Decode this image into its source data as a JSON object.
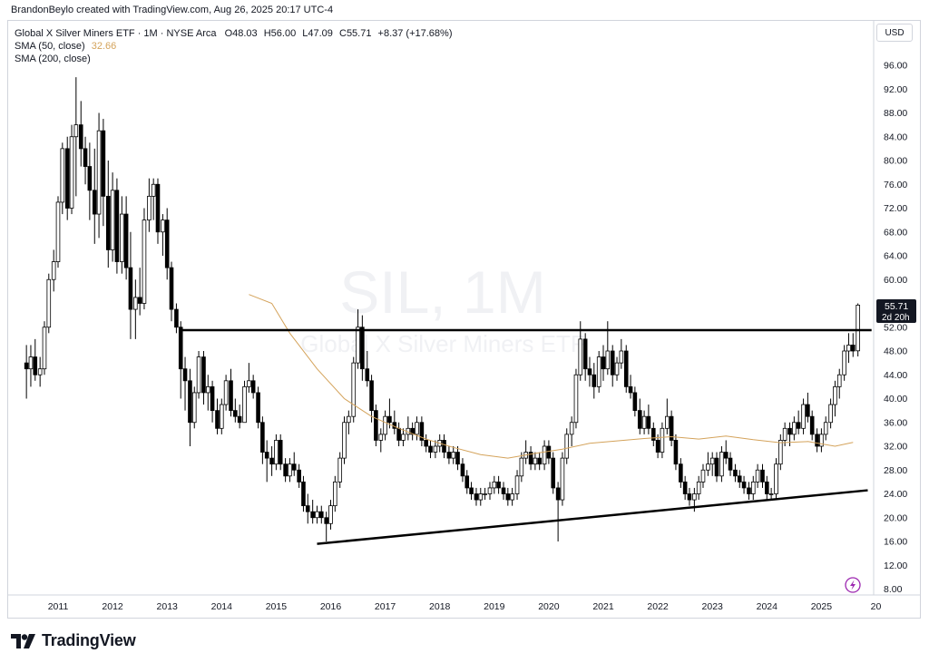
{
  "header": {
    "credit": "BrandonBeylo created with TradingView.com, Aug 26, 2025 20:17 UTC-4"
  },
  "legend": {
    "symbol": "Global X Silver Miners ETF · 1M · NYSE Arca",
    "o_label": "O",
    "o_value": "48.03",
    "h_label": "H",
    "h_value": "56.00",
    "l_label": "L",
    "l_value": "47.09",
    "c_label": "C",
    "c_value": "55.71",
    "change": "+8.37 (+17.68%)",
    "sma50_label": "SMA (50, close)",
    "sma50_value": "32.66",
    "sma200_label": "SMA (200, close)"
  },
  "watermark": {
    "ticker": "SIL, 1M",
    "name": "Global X Silver Miners ETF"
  },
  "currency": "USD",
  "price_label": {
    "price": "55.71",
    "countdown": "2d 20h"
  },
  "brand": {
    "name": "TradingView"
  },
  "chart_data": {
    "type": "candlestick",
    "interval": "1M",
    "x_ticks": [
      "2011",
      "2012",
      "2013",
      "2014",
      "2015",
      "2016",
      "2017",
      "2018",
      "2019",
      "2020",
      "2021",
      "2022",
      "2023",
      "2024",
      "2025",
      "20"
    ],
    "y_ticks": [
      "96.00",
      "92.00",
      "88.00",
      "84.00",
      "80.00",
      "76.00",
      "72.00",
      "68.00",
      "64.00",
      "60.00",
      "52.00",
      "48.00",
      "44.00",
      "40.00",
      "36.00",
      "32.00",
      "28.00",
      "24.00",
      "20.00",
      "16.00",
      "12.00",
      "8.00"
    ],
    "ylim": [
      8,
      100
    ],
    "xlim": [
      2010.22,
      2025.92
    ],
    "colors": {
      "up": "#ffffff",
      "down": "#000000",
      "wick": "#000000",
      "sma50": "#d4a35b"
    },
    "ohlc_series": [
      [
        2010.42,
        46,
        49,
        40,
        45
      ],
      [
        2010.5,
        45,
        49,
        42,
        47
      ],
      [
        2010.58,
        47,
        50,
        43,
        44
      ],
      [
        2010.67,
        44,
        47,
        42,
        45
      ],
      [
        2010.75,
        45,
        53,
        44,
        52
      ],
      [
        2010.83,
        52,
        61,
        51,
        60
      ],
      [
        2010.92,
        60,
        65,
        58,
        63
      ],
      [
        2011.0,
        63,
        74,
        62,
        73
      ],
      [
        2011.08,
        73,
        83,
        71,
        82
      ],
      [
        2011.17,
        82,
        84,
        70,
        72
      ],
      [
        2011.25,
        72,
        86,
        71,
        84
      ],
      [
        2011.33,
        84,
        94,
        74,
        86
      ],
      [
        2011.42,
        86,
        90,
        79,
        82
      ],
      [
        2011.5,
        82,
        84,
        76,
        79
      ],
      [
        2011.58,
        79,
        83,
        70,
        75
      ],
      [
        2011.67,
        75,
        82,
        66,
        71
      ],
      [
        2011.75,
        71,
        88,
        67,
        85
      ],
      [
        2011.83,
        85,
        87,
        69,
        74
      ],
      [
        2011.92,
        74,
        80,
        62,
        65
      ],
      [
        2012.0,
        65,
        78,
        63,
        75
      ],
      [
        2012.08,
        75,
        77,
        61,
        63
      ],
      [
        2012.17,
        63,
        74,
        61,
        71
      ],
      [
        2012.25,
        71,
        74,
        60,
        62
      ],
      [
        2012.33,
        62,
        68,
        50,
        55
      ],
      [
        2012.42,
        55,
        60,
        50,
        57
      ],
      [
        2012.5,
        57,
        62,
        54,
        56
      ],
      [
        2012.58,
        56,
        72,
        55,
        70
      ],
      [
        2012.67,
        70,
        77,
        68,
        74
      ],
      [
        2012.75,
        74,
        77,
        70,
        76
      ],
      [
        2012.83,
        76,
        77,
        66,
        68
      ],
      [
        2012.92,
        68,
        71,
        64,
        70
      ],
      [
        2013.0,
        70,
        72,
        60,
        62
      ],
      [
        2013.08,
        62,
        63,
        53,
        55
      ],
      [
        2013.17,
        55,
        56,
        51,
        52
      ],
      [
        2013.25,
        52,
        53,
        40,
        45
      ],
      [
        2013.33,
        45,
        47,
        38,
        43
      ],
      [
        2013.42,
        43,
        45,
        32,
        36
      ],
      [
        2013.5,
        36,
        42,
        35,
        41
      ],
      [
        2013.58,
        41,
        48,
        40,
        47
      ],
      [
        2013.67,
        47,
        48,
        39,
        41
      ],
      [
        2013.75,
        41,
        44,
        38,
        42
      ],
      [
        2013.83,
        42,
        43,
        36,
        38
      ],
      [
        2013.92,
        38,
        40,
        34,
        35
      ],
      [
        2014.0,
        35,
        40,
        34,
        39
      ],
      [
        2014.08,
        39,
        44,
        38,
        43
      ],
      [
        2014.17,
        43,
        45,
        37,
        38
      ],
      [
        2014.25,
        38,
        40,
        36,
        37
      ],
      [
        2014.33,
        37,
        39,
        35,
        36
      ],
      [
        2014.42,
        36,
        43,
        36,
        42
      ],
      [
        2014.5,
        42,
        46,
        41,
        43
      ],
      [
        2014.58,
        43,
        44,
        40,
        41
      ],
      [
        2014.67,
        41,
        42,
        35,
        36
      ],
      [
        2014.75,
        36,
        37,
        29,
        31
      ],
      [
        2014.83,
        31,
        33,
        26,
        30
      ],
      [
        2014.92,
        30,
        32,
        27,
        29
      ],
      [
        2015.0,
        29,
        34,
        28,
        33
      ],
      [
        2015.08,
        33,
        34,
        28,
        29
      ],
      [
        2015.17,
        29,
        30,
        26,
        27
      ],
      [
        2015.25,
        27,
        30,
        26,
        29
      ],
      [
        2015.33,
        29,
        31,
        27,
        28
      ],
      [
        2015.42,
        28,
        29,
        25,
        26
      ],
      [
        2015.5,
        26,
        27,
        21,
        22
      ],
      [
        2015.58,
        22,
        24,
        19,
        21
      ],
      [
        2015.67,
        21,
        23,
        19,
        20
      ],
      [
        2015.75,
        20,
        22,
        19,
        21
      ],
      [
        2015.83,
        21,
        22,
        19,
        20
      ],
      [
        2015.92,
        20,
        21,
        16,
        19
      ],
      [
        2016.0,
        19,
        23,
        18,
        22
      ],
      [
        2016.08,
        22,
        27,
        21,
        26
      ],
      [
        2016.17,
        26,
        31,
        25,
        30
      ],
      [
        2016.25,
        30,
        37,
        29,
        36
      ],
      [
        2016.33,
        36,
        38,
        34,
        37
      ],
      [
        2016.42,
        37,
        47,
        36,
        46
      ],
      [
        2016.5,
        46,
        55,
        45,
        52
      ],
      [
        2016.58,
        52,
        54,
        43,
        45
      ],
      [
        2016.67,
        45,
        48,
        42,
        43
      ],
      [
        2016.75,
        43,
        44,
        36,
        38
      ],
      [
        2016.83,
        38,
        39,
        32,
        33
      ],
      [
        2016.92,
        33,
        35,
        31,
        34
      ],
      [
        2017.0,
        34,
        38,
        33,
        37
      ],
      [
        2017.08,
        37,
        40,
        35,
        36
      ],
      [
        2017.17,
        36,
        38,
        34,
        35
      ],
      [
        2017.25,
        35,
        36,
        32,
        33
      ],
      [
        2017.33,
        33,
        35,
        32,
        34
      ],
      [
        2017.42,
        34,
        37,
        33,
        35
      ],
      [
        2017.5,
        35,
        36,
        33,
        34
      ],
      [
        2017.58,
        34,
        37,
        33,
        36
      ],
      [
        2017.67,
        36,
        37,
        32,
        33
      ],
      [
        2017.75,
        33,
        34,
        31,
        32
      ],
      [
        2017.83,
        32,
        33,
        30,
        31
      ],
      [
        2017.92,
        31,
        33,
        30,
        32
      ],
      [
        2018.0,
        32,
        34,
        31,
        33
      ],
      [
        2018.08,
        33,
        34,
        30,
        31
      ],
      [
        2018.17,
        31,
        32,
        29,
        30
      ],
      [
        2018.25,
        30,
        32,
        29,
        31
      ],
      [
        2018.33,
        31,
        32,
        28,
        29
      ],
      [
        2018.42,
        29,
        30,
        26,
        27
      ],
      [
        2018.5,
        27,
        28,
        24,
        25
      ],
      [
        2018.58,
        25,
        26,
        23,
        24
      ],
      [
        2018.67,
        24,
        25,
        22,
        23
      ],
      [
        2018.75,
        23,
        25,
        22,
        24
      ],
      [
        2018.83,
        24,
        25,
        23,
        24
      ],
      [
        2018.92,
        24,
        26,
        23,
        25
      ],
      [
        2019.0,
        25,
        27,
        24,
        26
      ],
      [
        2019.08,
        26,
        27,
        24,
        25
      ],
      [
        2019.17,
        25,
        26,
        23,
        24
      ],
      [
        2019.25,
        24,
        25,
        22,
        23
      ],
      [
        2019.33,
        23,
        25,
        22,
        24
      ],
      [
        2019.42,
        24,
        28,
        23,
        27
      ],
      [
        2019.5,
        27,
        31,
        26,
        30
      ],
      [
        2019.58,
        30,
        33,
        29,
        31
      ],
      [
        2019.67,
        31,
        32,
        28,
        29
      ],
      [
        2019.75,
        29,
        31,
        28,
        30
      ],
      [
        2019.83,
        30,
        31,
        28,
        29
      ],
      [
        2019.92,
        29,
        33,
        28,
        32
      ],
      [
        2020.0,
        32,
        33,
        29,
        30
      ],
      [
        2020.08,
        30,
        31,
        24,
        25
      ],
      [
        2020.17,
        25,
        26,
        16,
        23
      ],
      [
        2020.25,
        23,
        31,
        22,
        30
      ],
      [
        2020.33,
        30,
        35,
        29,
        34
      ],
      [
        2020.42,
        34,
        37,
        32,
        36
      ],
      [
        2020.5,
        36,
        45,
        35,
        44
      ],
      [
        2020.58,
        44,
        53,
        43,
        50
      ],
      [
        2020.67,
        50,
        51,
        43,
        45
      ],
      [
        2020.75,
        45,
        47,
        42,
        44
      ],
      [
        2020.83,
        44,
        46,
        40,
        42
      ],
      [
        2020.92,
        42,
        48,
        41,
        47
      ],
      [
        2021.0,
        47,
        49,
        43,
        45
      ],
      [
        2021.08,
        45,
        53,
        44,
        48
      ],
      [
        2021.17,
        48,
        49,
        42,
        44
      ],
      [
        2021.25,
        44,
        47,
        43,
        46
      ],
      [
        2021.33,
        46,
        50,
        45,
        48
      ],
      [
        2021.42,
        48,
        49,
        41,
        42
      ],
      [
        2021.5,
        42,
        44,
        40,
        41
      ],
      [
        2021.58,
        41,
        42,
        37,
        38
      ],
      [
        2021.67,
        38,
        40,
        34,
        35
      ],
      [
        2021.75,
        35,
        38,
        34,
        37
      ],
      [
        2021.83,
        37,
        39,
        34,
        35
      ],
      [
        2021.92,
        35,
        36,
        32,
        33
      ],
      [
        2022.0,
        33,
        34,
        30,
        31
      ],
      [
        2022.08,
        31,
        36,
        30,
        35
      ],
      [
        2022.17,
        35,
        40,
        34,
        37
      ],
      [
        2022.25,
        37,
        38,
        32,
        33
      ],
      [
        2022.33,
        33,
        34,
        28,
        29
      ],
      [
        2022.42,
        29,
        30,
        25,
        26
      ],
      [
        2022.5,
        26,
        27,
        23,
        24
      ],
      [
        2022.58,
        24,
        25,
        22,
        23
      ],
      [
        2022.67,
        23,
        25,
        21,
        24
      ],
      [
        2022.75,
        24,
        27,
        23,
        26
      ],
      [
        2022.83,
        26,
        29,
        25,
        28
      ],
      [
        2022.92,
        28,
        31,
        27,
        29
      ],
      [
        2023.0,
        29,
        31,
        27,
        30
      ],
      [
        2023.08,
        30,
        31,
        26,
        27
      ],
      [
        2023.17,
        27,
        32,
        26,
        31
      ],
      [
        2023.25,
        31,
        33,
        29,
        30
      ],
      [
        2023.33,
        30,
        31,
        27,
        28
      ],
      [
        2023.42,
        28,
        29,
        26,
        27
      ],
      [
        2023.5,
        27,
        28,
        25,
        26
      ],
      [
        2023.58,
        26,
        27,
        24,
        25
      ],
      [
        2023.67,
        25,
        26,
        23,
        24
      ],
      [
        2023.75,
        24,
        27,
        23,
        26
      ],
      [
        2023.83,
        26,
        29,
        25,
        28
      ],
      [
        2023.92,
        28,
        29,
        25,
        26
      ],
      [
        2024.0,
        26,
        27,
        23,
        24
      ],
      [
        2024.08,
        24,
        25,
        23,
        24
      ],
      [
        2024.17,
        24,
        30,
        23,
        29
      ],
      [
        2024.25,
        29,
        34,
        28,
        33
      ],
      [
        2024.33,
        33,
        36,
        32,
        35
      ],
      [
        2024.42,
        35,
        36,
        32,
        34
      ],
      [
        2024.5,
        34,
        37,
        33,
        36
      ],
      [
        2024.58,
        36,
        38,
        34,
        35
      ],
      [
        2024.67,
        35,
        40,
        34,
        39
      ],
      [
        2024.75,
        39,
        41,
        36,
        37
      ],
      [
        2024.83,
        37,
        38,
        33,
        34
      ],
      [
        2024.92,
        34,
        35,
        31,
        32
      ],
      [
        2025.0,
        32,
        35,
        31,
        34
      ],
      [
        2025.08,
        34,
        37,
        33,
        36
      ],
      [
        2025.17,
        36,
        40,
        35,
        39
      ],
      [
        2025.25,
        39,
        43,
        37,
        42
      ],
      [
        2025.33,
        42,
        45,
        40,
        44
      ],
      [
        2025.42,
        44,
        49,
        43,
        48
      ],
      [
        2025.5,
        48,
        51,
        46,
        49
      ],
      [
        2025.58,
        49,
        51,
        47,
        48
      ],
      [
        2025.67,
        48.03,
        56.0,
        47.09,
        55.71
      ]
    ],
    "sma50": [
      [
        2014.5,
        57.5
      ],
      [
        2014.92,
        56
      ],
      [
        2015.25,
        51
      ],
      [
        2015.75,
        45
      ],
      [
        2016.25,
        40
      ],
      [
        2016.75,
        37
      ],
      [
        2017.25,
        35
      ],
      [
        2017.75,
        33.2
      ],
      [
        2018.25,
        31.8
      ],
      [
        2018.75,
        30.6
      ],
      [
        2019.25,
        30
      ],
      [
        2019.75,
        30.8
      ],
      [
        2020.25,
        31.5
      ],
      [
        2020.75,
        32.5
      ],
      [
        2021.25,
        32.9
      ],
      [
        2021.75,
        33.3
      ],
      [
        2022.25,
        33.6
      ],
      [
        2022.75,
        33.2
      ],
      [
        2023.25,
        33.7
      ],
      [
        2023.75,
        33.1
      ],
      [
        2024.25,
        32.6
      ],
      [
        2024.75,
        32.8
      ],
      [
        2025.25,
        32
      ],
      [
        2025.58,
        32.66
      ]
    ],
    "resistance_line": [
      [
        2013.25,
        51.5
      ],
      [
        2025.92,
        51.5
      ]
    ],
    "support_line": [
      [
        2015.75,
        15.6
      ],
      [
        2025.85,
        24.6
      ]
    ]
  }
}
